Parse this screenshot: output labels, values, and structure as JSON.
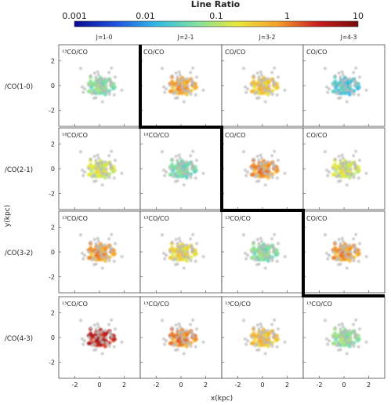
{
  "chart_data": {
    "type": "scatter",
    "title": "Line Ratio",
    "colorbar": {
      "scale": "log",
      "ticks": [
        "0.001",
        "0.01",
        "0.1",
        "1",
        "10"
      ],
      "range": [
        0.001,
        10
      ],
      "colors": [
        "#0a0a8f",
        "#1f4fe0",
        "#2fb8e6",
        "#7ee0a0",
        "#e8e83a",
        "#f5a02a",
        "#c81e1e",
        "#7a0a0a"
      ]
    },
    "columns": [
      "J=1-0",
      "J=2-1",
      "J=3-2",
      "J=4-3"
    ],
    "rows": [
      "/CO(1-0)",
      "/CO(2-1)",
      "/CO(3-2)",
      "/CO(4-3)"
    ],
    "xlabel": "x(kpc)",
    "ylabel": "y(kpc)",
    "xticks": [
      "-2",
      "0",
      "2"
    ],
    "yticks": [
      "2",
      "0",
      "-2"
    ],
    "xlim": [
      -3.3,
      3.3
    ],
    "ylim": [
      -3.3,
      3.3
    ],
    "panel_labels": [
      [
        "¹³CO/CO",
        "CO/CO",
        "CO/CO",
        "CO/CO"
      ],
      [
        "¹⁸CO/CO",
        "¹⁸CO/CO",
        "CO/CO",
        "CO/CO"
      ],
      [
        "¹³CO/CO",
        "¹³CO/CO",
        "¹³CO/CO",
        "CO/CO"
      ],
      [
        "¹³CO/CO",
        "¹³CO/CO",
        "¹³CO/CO",
        "¹³CO/CO"
      ]
    ],
    "panel_ratio_estimate": [
      [
        0.05,
        0.6,
        0.35,
        0.02
      ],
      [
        0.15,
        0.04,
        0.8,
        0.15
      ],
      [
        0.7,
        0.25,
        0.05,
        0.7
      ],
      [
        3.0,
        0.9,
        0.4,
        0.06
      ]
    ],
    "staircase_divider": true
  }
}
